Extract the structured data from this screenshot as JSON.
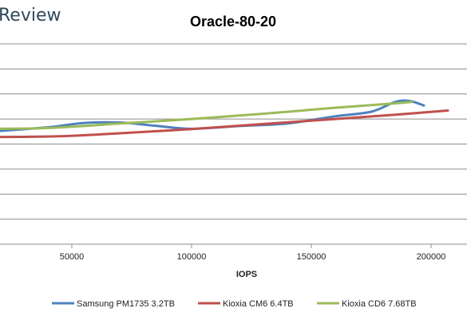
{
  "brand": "Review",
  "chart_data": {
    "type": "line",
    "title": "Oracle-80-20",
    "xlabel": "IOPS",
    "ylabel": "",
    "x_ticks": [
      50000,
      100000,
      150000,
      200000
    ],
    "x_tick_labels": [
      "50000",
      "100000",
      "150000",
      "200000"
    ],
    "xlim": [
      20000,
      215000
    ],
    "ylim": [
      0,
      8
    ],
    "grid": "horizontal",
    "legend_position": "bottom",
    "series": [
      {
        "name": "Samsung PM1735 3.2TB",
        "color": "#4f81bd",
        "points": [
          [
            18000,
            4.51
          ],
          [
            40000,
            4.67
          ],
          [
            55000,
            4.84
          ],
          [
            70000,
            4.86
          ],
          [
            85000,
            4.73
          ],
          [
            100000,
            4.61
          ],
          [
            120000,
            4.72
          ],
          [
            140000,
            4.82
          ],
          [
            160000,
            5.11
          ],
          [
            175000,
            5.29
          ],
          [
            185000,
            5.68
          ],
          [
            191000,
            5.72
          ],
          [
            197000,
            5.54
          ]
        ]
      },
      {
        "name": "Kioxia CM6 6.4TB",
        "color": "#c0504d",
        "points": [
          [
            18000,
            4.28
          ],
          [
            45000,
            4.31
          ],
          [
            70000,
            4.43
          ],
          [
            100000,
            4.6
          ],
          [
            130000,
            4.8
          ],
          [
            160000,
            5.0
          ],
          [
            185000,
            5.17
          ],
          [
            207000,
            5.34
          ]
        ]
      },
      {
        "name": "Kioxia CD6 7.68TB",
        "color": "#9bbb59",
        "points": [
          [
            18000,
            4.61
          ],
          [
            40000,
            4.64
          ],
          [
            70000,
            4.82
          ],
          [
            100000,
            5.0
          ],
          [
            130000,
            5.21
          ],
          [
            160000,
            5.45
          ],
          [
            180000,
            5.59
          ],
          [
            192000,
            5.68
          ]
        ]
      }
    ]
  }
}
